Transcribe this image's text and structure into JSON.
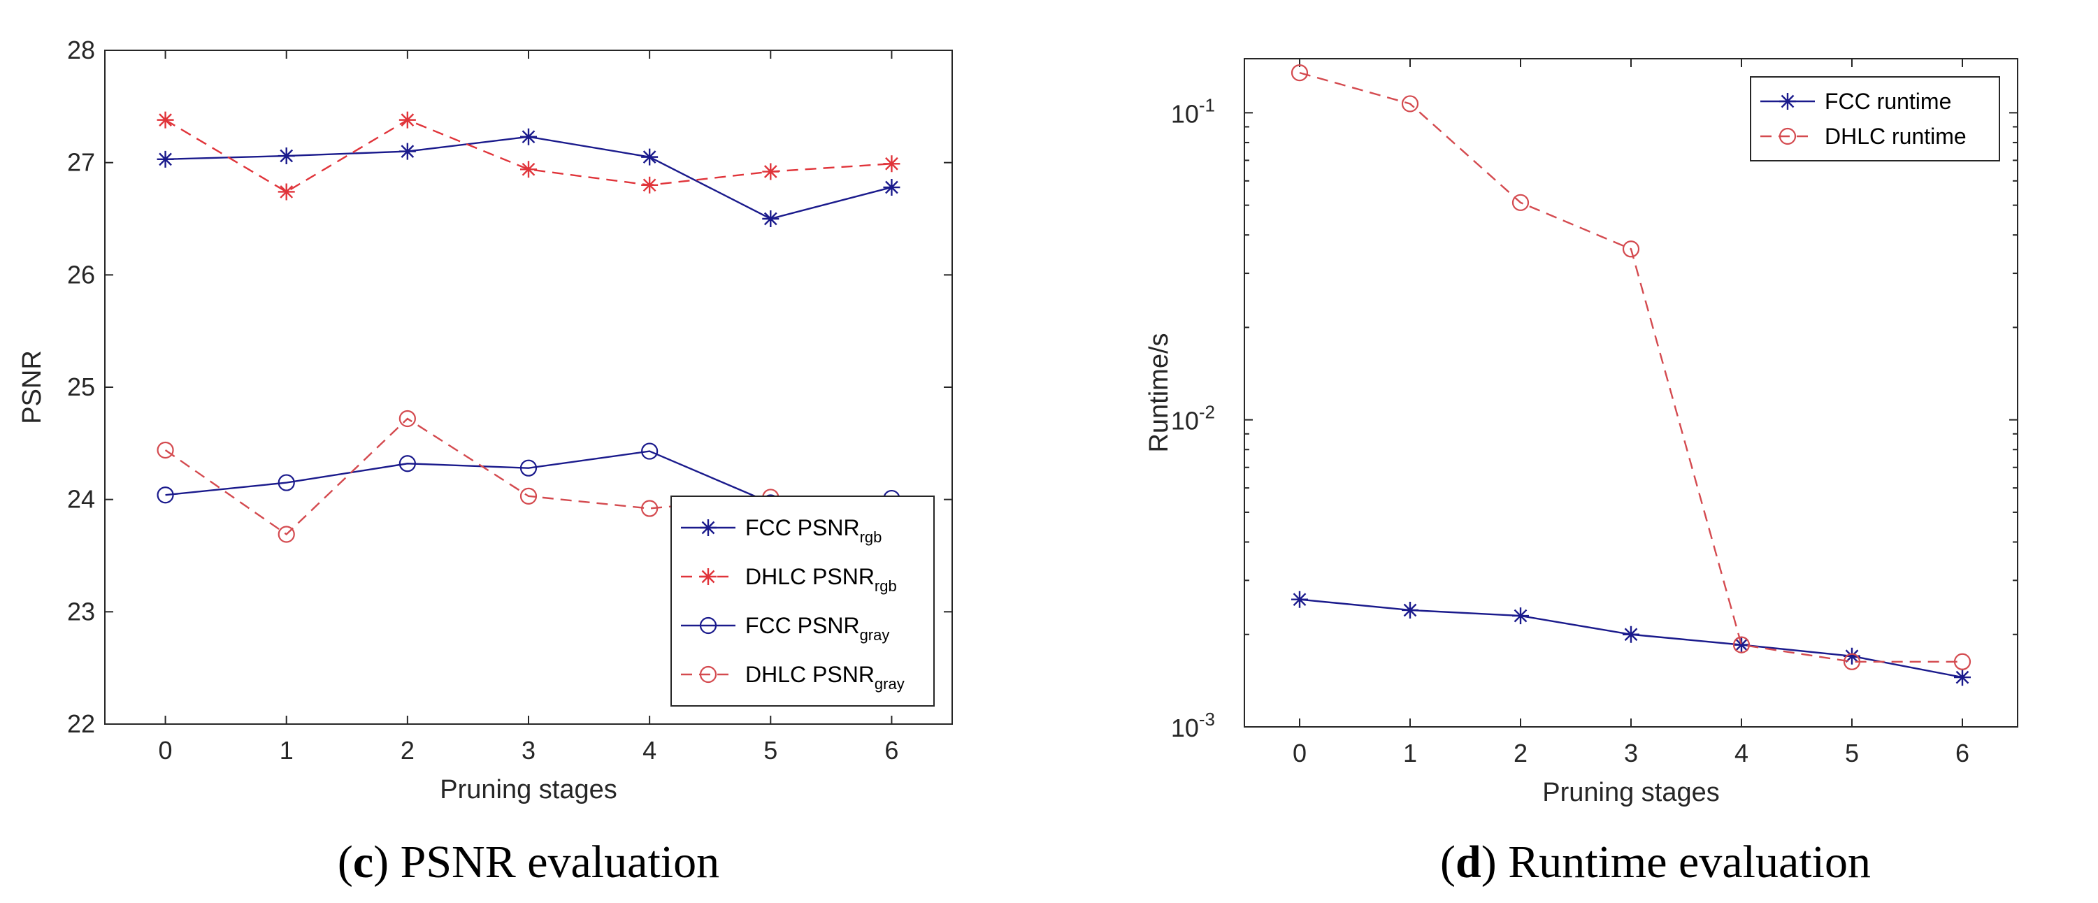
{
  "chart_data": [
    {
      "id": "psnr",
      "type": "line",
      "caption_letter": "c",
      "caption_text": "PSNR evaluation",
      "xlabel": "Pruning stages",
      "ylabel": "PSNR",
      "xlim": [
        -0.5,
        6.5
      ],
      "ylim": [
        22,
        28
      ],
      "yscale": "linear",
      "x": [
        0,
        1,
        2,
        3,
        4,
        5,
        6
      ],
      "x_ticks": [
        "0",
        "1",
        "2",
        "3",
        "4",
        "5",
        "6"
      ],
      "y_ticks": [
        22,
        23,
        24,
        25,
        26,
        27,
        28
      ],
      "y_tick_labels": [
        "22",
        "23",
        "24",
        "25",
        "26",
        "27",
        "28"
      ],
      "legend_position": "bottom-right",
      "series": [
        {
          "name": "FCC PSNR",
          "sub": "rgb",
          "color": "#1a1a8c",
          "dash": "solid",
          "marker": "star",
          "values": [
            27.03,
            27.06,
            27.1,
            27.23,
            27.05,
            26.5,
            26.78
          ]
        },
        {
          "name": "DHLC PSNR",
          "sub": "rgb",
          "color": "#e0343a",
          "dash": "dashed",
          "marker": "star",
          "values": [
            27.38,
            26.74,
            27.38,
            26.94,
            26.8,
            26.92,
            26.99
          ]
        },
        {
          "name": "FCC PSNR",
          "sub": "gray",
          "color": "#1a1a8c",
          "dash": "solid",
          "marker": "circle",
          "values": [
            24.04,
            24.15,
            24.32,
            24.28,
            24.43,
            23.97,
            24.01
          ]
        },
        {
          "name": "DHLC PSNR",
          "sub": "gray",
          "color": "#d44a4f",
          "dash": "dashed",
          "marker": "circle",
          "values": [
            24.44,
            23.69,
            24.72,
            24.03,
            23.92,
            24.02,
            23.95
          ]
        }
      ]
    },
    {
      "id": "runtime",
      "type": "line",
      "caption_letter": "d",
      "caption_text": "Runtime evaluation",
      "xlabel": "Pruning stages",
      "ylabel": "Runtime/s",
      "xlim": [
        -0.5,
        6.5
      ],
      "ylim": [
        0.001,
        0.15
      ],
      "yscale": "log",
      "x": [
        0,
        1,
        2,
        3,
        4,
        5,
        6
      ],
      "x_ticks": [
        "0",
        "1",
        "2",
        "3",
        "4",
        "5",
        "6"
      ],
      "y_ticks": [
        0.001,
        0.01,
        0.1
      ],
      "y_tick_labels": [
        {
          "base": "10",
          "exp": "-3"
        },
        {
          "base": "10",
          "exp": "-2"
        },
        {
          "base": "10",
          "exp": "-1"
        }
      ],
      "legend_position": "top-right",
      "series": [
        {
          "name": "FCC runtime",
          "sub": "",
          "color": "#1a1a8c",
          "dash": "solid",
          "marker": "star",
          "values": [
            0.0026,
            0.0024,
            0.0023,
            0.002,
            0.00185,
            0.0017,
            0.00145
          ]
        },
        {
          "name": "DHLC runtime",
          "sub": "",
          "color": "#d44a4f",
          "dash": "dashed",
          "marker": "circle",
          "values": [
            0.135,
            0.107,
            0.051,
            0.036,
            0.00185,
            0.00163,
            0.00163
          ]
        }
      ]
    }
  ]
}
